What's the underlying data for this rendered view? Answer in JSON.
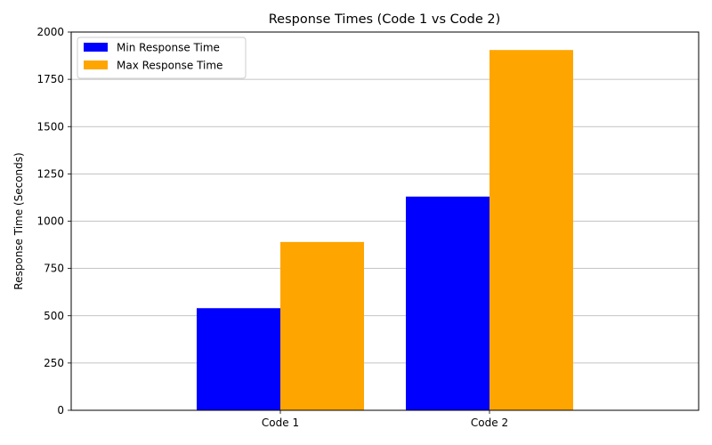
{
  "chart_data": {
    "type": "bar",
    "title": "Response Times (Code 1 vs Code 2)",
    "xlabel": "",
    "ylabel": "Response Time (Seconds)",
    "categories": [
      "Code 1",
      "Code 2"
    ],
    "series": [
      {
        "name": "Min Response Time",
        "values": [
          540,
          1130
        ],
        "color": "#0000ff"
      },
      {
        "name": "Max Response Time",
        "values": [
          890,
          1905
        ],
        "color": "#ffa500"
      }
    ],
    "ylim": [
      0,
      2000
    ],
    "yticks": [
      "0",
      "250",
      "500",
      "750",
      "1000",
      "1250",
      "1500",
      "1750",
      "2000"
    ],
    "grid": "y-axis",
    "legend_position": "top-left"
  }
}
